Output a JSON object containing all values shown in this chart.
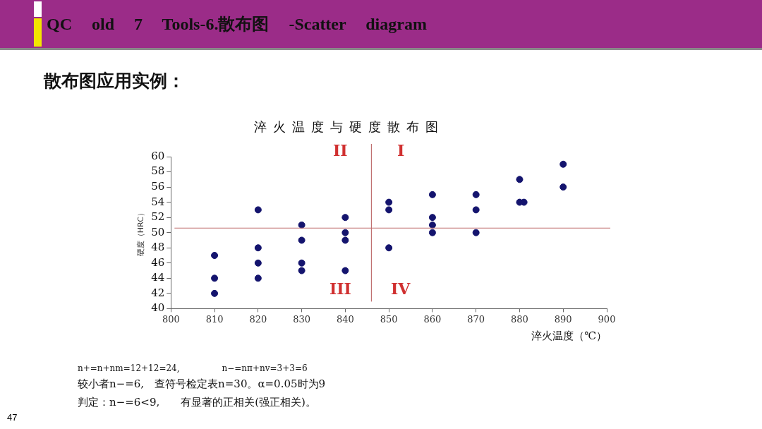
{
  "chart_data": {
    "type": "scatter",
    "title": "淬火温度与硬度散布图",
    "xlabel": "淬火温度（℃）",
    "ylabel": "硬度（HRC）",
    "x": [
      810,
      810,
      810,
      820,
      820,
      820,
      820,
      830,
      830,
      830,
      830,
      840,
      840,
      840,
      840,
      850,
      850,
      850,
      860,
      860,
      860,
      860,
      870,
      870,
      870,
      880,
      880,
      881,
      890,
      890
    ],
    "values": [
      47,
      44,
      42,
      53,
      48,
      46,
      44,
      51,
      49,
      46,
      45,
      52,
      50,
      49,
      45,
      54,
      53,
      48,
      55,
      52,
      51,
      50,
      55,
      53,
      50,
      57,
      54,
      54,
      59,
      56
    ],
    "color": "#14146e",
    "marker": "circle",
    "xlim": [
      800,
      900
    ],
    "xticks": [
      800,
      810,
      820,
      830,
      840,
      850,
      860,
      870,
      880,
      890,
      900
    ],
    "ylim": [
      40,
      60
    ],
    "yticks": [
      40,
      42,
      44,
      46,
      48,
      50,
      52,
      54,
      56,
      58,
      60
    ],
    "ref_lines": [
      {
        "axis": "y",
        "value": 50.6,
        "color": "#c07070"
      },
      {
        "axis": "x",
        "value": 846,
        "color": "#c07070"
      }
    ],
    "annotations": [
      "QC old 7 Tools-6.散布图 -Scatter diagram",
      "散布图应用实例：",
      "n+=n+nm=12+12=24,　　　　　n−=nπ+nv=3+3=6",
      "较小者n−=6,　查符号检定表n=30。α=0.05时为9",
      "判定：n−=6<9,　　有显著的正相关(强正相关)。",
      "47",
      "II",
      "I",
      "III",
      "IV"
    ]
  }
}
